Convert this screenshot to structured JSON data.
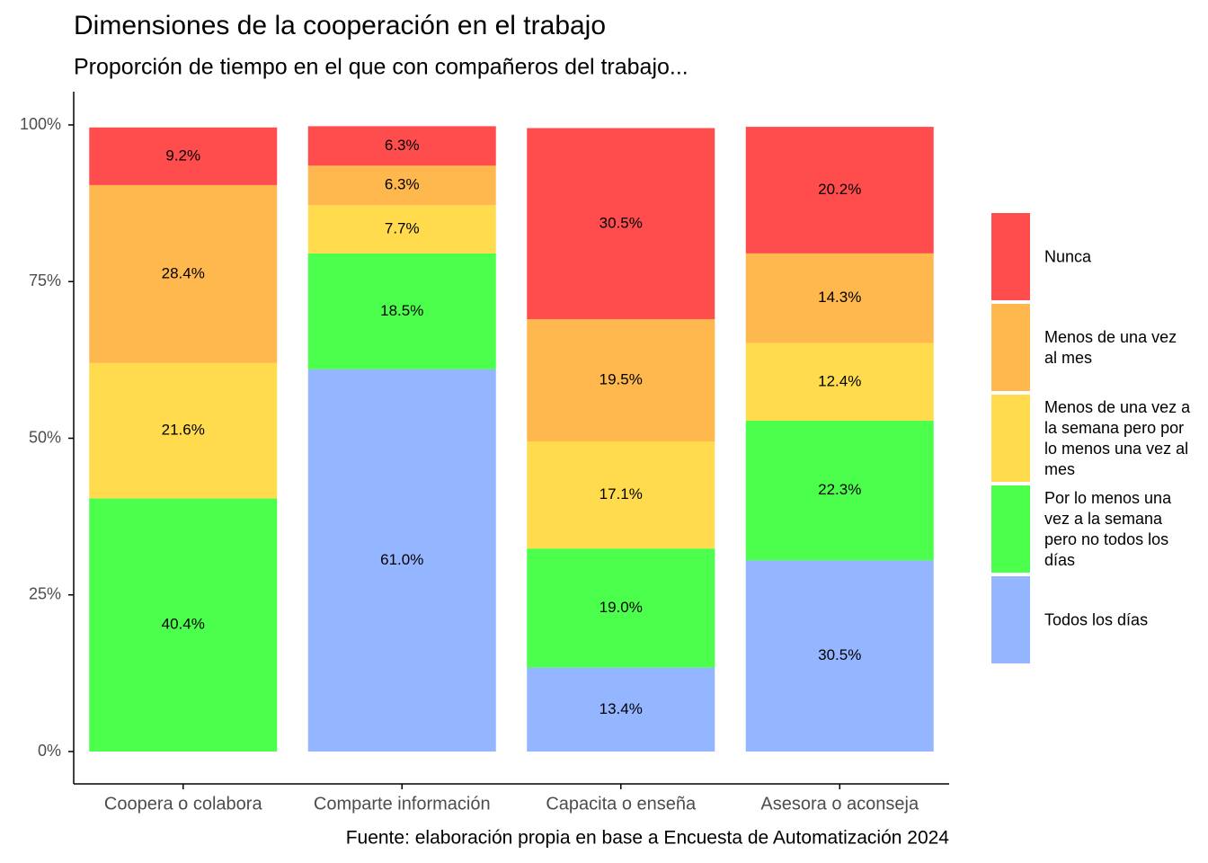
{
  "chart_data": {
    "type": "stacked_bar",
    "title": "Dimensiones de la cooperación en el trabajo",
    "subtitle": "Proporción de tiempo en el que con compañeros del trabajo...",
    "caption": "Fuente: elaboración propia en base a Encuesta de Automatización 2024",
    "categories": [
      "Coopera o colabora",
      "Comparte información",
      "Capacita o enseña",
      "Asesora o aconseja"
    ],
    "series": [
      {
        "name": "Todos los días",
        "color": "#94b5ff",
        "values": [
          null,
          61.0,
          13.4,
          30.5
        ],
        "value_labels": [
          null,
          "61.0%",
          "13.4%",
          "30.5%"
        ]
      },
      {
        "name": "Por lo menos una vez a la semana pero no todos los días",
        "color": "#4cff4c",
        "values": [
          40.4,
          18.5,
          19.0,
          22.3
        ],
        "value_labels": [
          "40.4%",
          "18.5%",
          "19.0%",
          "22.3%"
        ]
      },
      {
        "name": "Menos de una vez a la semana pero por lo menos una vez al mes",
        "color": "#ffdb4d",
        "values": [
          21.6,
          7.7,
          17.1,
          12.4
        ],
        "value_labels": [
          "21.6%",
          "7.7%",
          "17.1%",
          "12.4%"
        ]
      },
      {
        "name": "Menos de una vez al mes",
        "color": "#ffb84d",
        "values": [
          28.4,
          6.3,
          19.5,
          14.3
        ],
        "value_labels": [
          "28.4%",
          "6.3%",
          "19.5%",
          "14.3%"
        ]
      },
      {
        "name": "Nunca",
        "color": "#ff4d4d",
        "values": [
          9.2,
          6.3,
          30.5,
          20.2
        ],
        "value_labels": [
          "9.2%",
          "6.3%",
          "30.5%",
          "20.2%"
        ]
      }
    ],
    "ylim": [
      0,
      100
    ],
    "yticks": [
      {
        "value": 0,
        "label": "0%"
      },
      {
        "value": 25,
        "label": "25%"
      },
      {
        "value": 50,
        "label": "50%"
      },
      {
        "value": 75,
        "label": "75%"
      },
      {
        "value": 100,
        "label": "100%"
      }
    ],
    "legend": "right"
  }
}
